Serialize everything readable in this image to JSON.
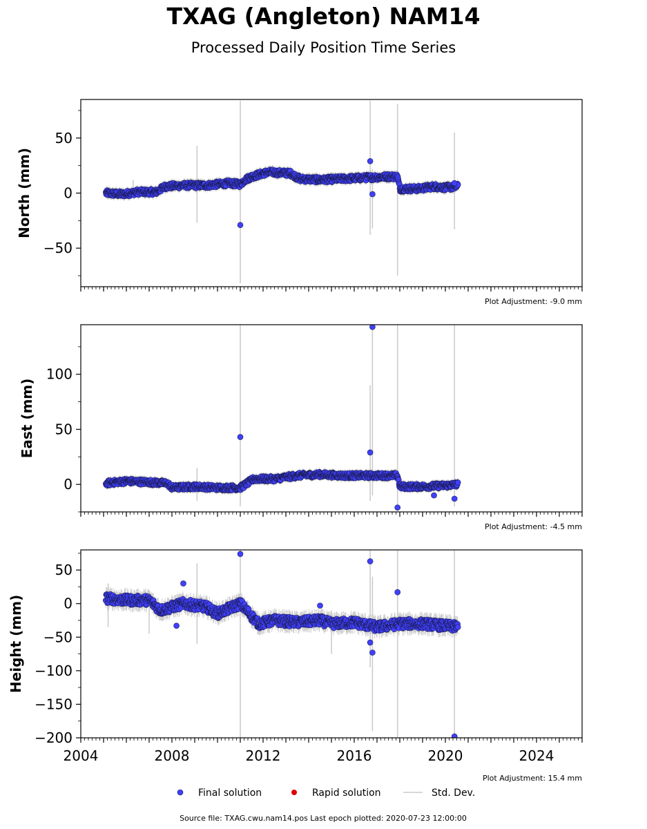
{
  "title": "TXAG (Angleton) NAM14",
  "subtitle": "Processed Daily Position Time Series",
  "colors": {
    "final": "#4040ff",
    "rapid": "#dd0000",
    "stddev": "#cccccc",
    "edge": "#1a1a4a"
  },
  "legend": {
    "final_label": "Final solution",
    "rapid_label": "Rapid solution",
    "stddev_label": "Std. Dev."
  },
  "source_text": "Source file: TXAG.cwu.nam14.pos  Last epoch plotted: 2020-07-23 12:00:00",
  "chart_data": [
    {
      "type": "scatter",
      "ylabel": "North (mm)",
      "adjustment": "Plot Adjustment: -9.0 mm",
      "xlim": [
        2004,
        2026
      ],
      "ylim": [
        -85,
        85
      ],
      "yticks": [
        -50,
        0,
        50
      ],
      "ytick_labels": [
        "−50",
        "0",
        "50"
      ],
      "trend": [
        [
          2005.1,
          0
        ],
        [
          2005.8,
          -1
        ],
        [
          2006.5,
          1
        ],
        [
          2007.3,
          1
        ],
        [
          2007.7,
          6
        ],
        [
          2008.5,
          7
        ],
        [
          2009.5,
          7
        ],
        [
          2010.5,
          9
        ],
        [
          2011.0,
          8
        ],
        [
          2011.2,
          12
        ],
        [
          2011.5,
          15
        ],
        [
          2012.2,
          19
        ],
        [
          2013.2,
          18
        ],
        [
          2013.6,
          13
        ],
        [
          2014.5,
          12
        ],
        [
          2015.5,
          13
        ],
        [
          2016.5,
          14
        ],
        [
          2017.5,
          15
        ],
        [
          2017.9,
          15
        ],
        [
          2018.0,
          4
        ],
        [
          2018.8,
          4
        ],
        [
          2019.5,
          6
        ],
        [
          2020.0,
          5
        ],
        [
          2020.55,
          6
        ]
      ],
      "scatter_amp": 2.6,
      "outliers": [
        [
          2011.0,
          -29
        ],
        [
          2016.7,
          29
        ],
        [
          2016.8,
          -1
        ],
        [
          2020.4,
          9
        ]
      ],
      "stddev_bars": [
        [
          2011.0,
          -82,
          84
        ],
        [
          2016.7,
          -38,
          84
        ],
        [
          2016.8,
          -32,
          22
        ],
        [
          2017.9,
          -75,
          81
        ],
        [
          2009.1,
          -27,
          43
        ],
        [
          2020.4,
          -33,
          55
        ],
        [
          2006.3,
          -3,
          12
        ]
      ]
    },
    {
      "type": "scatter",
      "ylabel": "East (mm)",
      "adjustment": "Plot Adjustment: -4.5 mm",
      "xlim": [
        2004,
        2026
      ],
      "ylim": [
        -25,
        145
      ],
      "yticks": [
        0,
        50,
        100
      ],
      "ytick_labels": [
        "0",
        "50",
        "100"
      ],
      "trend": [
        [
          2005.1,
          1
        ],
        [
          2006.0,
          3
        ],
        [
          2007.0,
          2
        ],
        [
          2007.8,
          1
        ],
        [
          2008.0,
          -3
        ],
        [
          2009.0,
          -2
        ],
        [
          2010.0,
          -3
        ],
        [
          2011.0,
          -3
        ],
        [
          2011.6,
          5
        ],
        [
          2012.5,
          5
        ],
        [
          2013.5,
          8
        ],
        [
          2014.5,
          9
        ],
        [
          2015.5,
          8
        ],
        [
          2016.5,
          8
        ],
        [
          2017.9,
          8
        ],
        [
          2018.0,
          -2
        ],
        [
          2019.0,
          -2
        ],
        [
          2020.0,
          -1
        ],
        [
          2020.55,
          0
        ]
      ],
      "scatter_amp": 2.4,
      "outliers": [
        [
          2011.0,
          43
        ],
        [
          2016.7,
          29
        ],
        [
          2016.8,
          143
        ],
        [
          2017.9,
          -21
        ],
        [
          2019.5,
          -10
        ],
        [
          2020.4,
          -13
        ]
      ],
      "stddev_bars": [
        [
          2011.0,
          -20,
          145
        ],
        [
          2016.7,
          -15,
          90
        ],
        [
          2016.8,
          -10,
          145
        ],
        [
          2017.9,
          -25,
          145
        ],
        [
          2020.4,
          -20,
          145
        ],
        [
          2009.1,
          -15,
          15
        ]
      ]
    },
    {
      "type": "scatter",
      "ylabel": "Height (mm)",
      "adjustment": "Plot Adjustment: 15.4 mm",
      "xlim": [
        2004,
        2026
      ],
      "ylim": [
        -200,
        80
      ],
      "yticks": [
        -200,
        -150,
        -100,
        -50,
        0,
        50
      ],
      "ytick_labels": [
        "−200",
        "−150",
        "−100",
        "−50",
        "0",
        "50"
      ],
      "xticks": [
        2004,
        2008,
        2012,
        2016,
        2020,
        2024
      ],
      "xtick_labels": [
        "2004",
        "2008",
        "2012",
        "2016",
        "2020",
        "2024"
      ],
      "trend": [
        [
          2005.1,
          8
        ],
        [
          2006.0,
          5
        ],
        [
          2007.0,
          5
        ],
        [
          2007.5,
          -10
        ],
        [
          2008.5,
          0
        ],
        [
          2009.5,
          -5
        ],
        [
          2010.0,
          -15
        ],
        [
          2011.0,
          0
        ],
        [
          2011.8,
          -30
        ],
        [
          2012.5,
          -25
        ],
        [
          2013.5,
          -28
        ],
        [
          2014.5,
          -25
        ],
        [
          2015.0,
          -30
        ],
        [
          2016.0,
          -28
        ],
        [
          2017.0,
          -35
        ],
        [
          2018.0,
          -30
        ],
        [
          2019.0,
          -30
        ],
        [
          2020.55,
          -35
        ]
      ],
      "scatter_amp": 7,
      "outliers": [
        [
          2011.0,
          74
        ],
        [
          2016.7,
          63
        ],
        [
          2016.8,
          -73
        ],
        [
          2017.9,
          17
        ],
        [
          2020.4,
          -198
        ],
        [
          2008.5,
          30
        ],
        [
          2008.2,
          -33
        ],
        [
          2014.5,
          -3
        ],
        [
          2016.7,
          -58
        ]
      ],
      "stddev_bars": [
        [
          2011.0,
          -200,
          80
        ],
        [
          2016.7,
          -95,
          80
        ],
        [
          2016.8,
          -190,
          40
        ],
        [
          2017.9,
          -200,
          80
        ],
        [
          2020.4,
          -200,
          80
        ],
        [
          2009.1,
          -60,
          60
        ],
        [
          2005.2,
          -35,
          30
        ],
        [
          2007.0,
          -45,
          20
        ],
        [
          2015.0,
          -75,
          -10
        ]
      ]
    }
  ]
}
